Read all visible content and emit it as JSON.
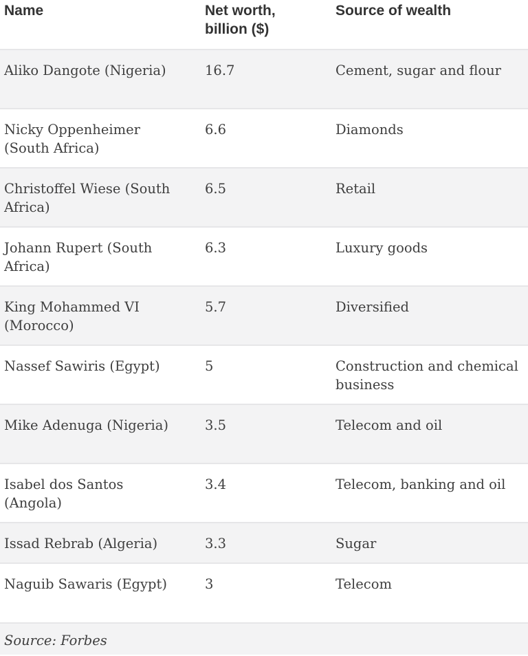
{
  "headers": [
    "Name",
    "Net worth, billion ($)",
    "Source of wealth"
  ],
  "rows": [
    {
      "name": "Aliko Dangote (Nigeria)",
      "worth": "16.7",
      "source": "Cement, sugar and flour"
    },
    {
      "name": "Nicky Oppenheimer (South Africa)",
      "worth": "6.6",
      "source": "Diamonds"
    },
    {
      "name": "Christoffel Wiese (South Africa)",
      "worth": "6.5",
      "source": "Retail"
    },
    {
      "name": "Johann Rupert (South Africa)",
      "worth": "6.3",
      "source": "Luxury goods"
    },
    {
      "name": "King Mohammed VI (Morocco)",
      "worth": "5.7",
      "source": "Diversified"
    },
    {
      "name": "Nassef Sawiris (Egypt)",
      "worth": "5",
      "source": "Construction and chemical business"
    },
    {
      "name": "Mike Adenuga (Nigeria)",
      "worth": "3.5",
      "source": "Telecom and oil"
    },
    {
      "name": "Isabel dos Santos (Angola)",
      "worth": "3.4",
      "source": "Telecom, banking and oil"
    },
    {
      "name": "Issad Rebrab (Algeria)",
      "worth": "3.3",
      "source": "Sugar"
    },
    {
      "name": "Naguib Sawaris (Egypt)",
      "worth": "3",
      "source": "Telecom"
    }
  ],
  "footer": "Source: Forbes"
}
